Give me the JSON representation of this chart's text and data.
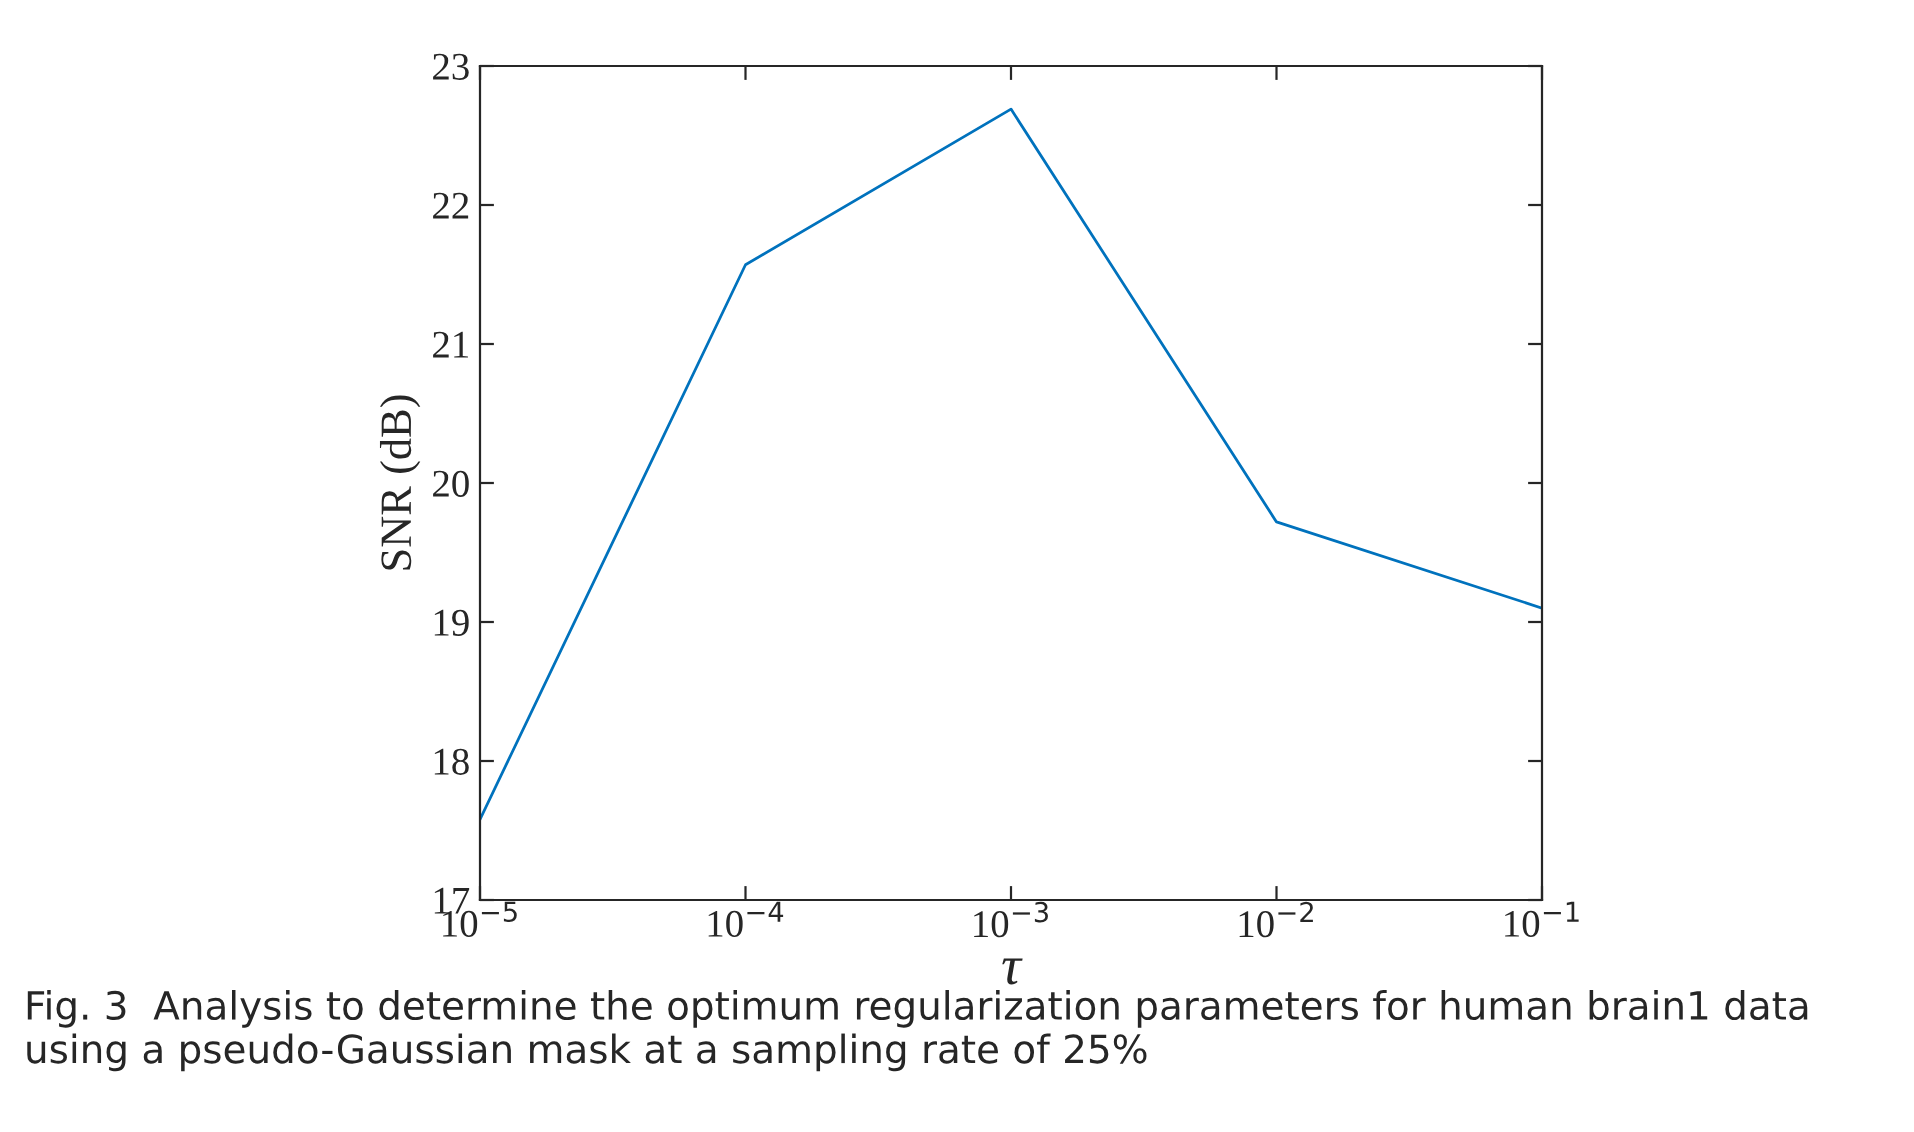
{
  "chart_data": {
    "type": "line",
    "xlabel": "τ",
    "ylabel": "SNR (dB)",
    "log": "x",
    "x": [
      1e-05,
      0.0001,
      0.001,
      0.01,
      0.1
    ],
    "series": [
      {
        "color": "#0072bd",
        "values": [
          17.58,
          21.57,
          22.69,
          19.72,
          19.1
        ]
      }
    ],
    "xlim": [
      1e-05,
      0.1
    ],
    "xticks": [
      {
        "value": 1e-05,
        "label": "10$^{−5}$"
      },
      {
        "value": 0.0001,
        "label": "10$^{−4}$"
      },
      {
        "value": 0.001,
        "label": "10$^{−3}$"
      },
      {
        "value": 0.01,
        "label": "10$^{−2}$"
      },
      {
        "value": 0.1,
        "label": "10$^{−1}$"
      }
    ],
    "ylim": [
      17,
      23
    ],
    "yticks": [
      17,
      18,
      19,
      20,
      21,
      22,
      23
    ],
    "grid": false,
    "marker": "none",
    "line_style": "solid",
    "annotations": [
      "Fig. 3  Analysis to determine the optimum regularization parameters for human brain1 data using a pseudo-Gaussian mask at a sampling rate of 25%"
    ]
  }
}
